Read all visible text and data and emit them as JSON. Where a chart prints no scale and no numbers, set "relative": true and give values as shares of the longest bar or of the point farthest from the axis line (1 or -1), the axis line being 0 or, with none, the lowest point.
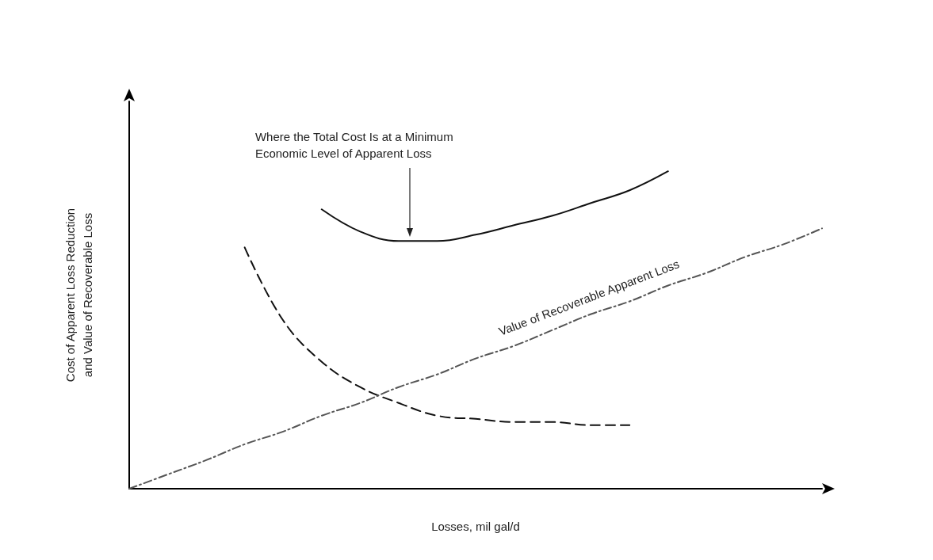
{
  "chart_data": {
    "type": "line",
    "relative": true,
    "xlabel": "Losses, mil gal/d",
    "ylabel": "Cost of Apparent Loss Reduction\nand Value of Recoverable Loss",
    "categories": [
      null,
      null,
      null,
      null,
      null,
      null,
      null,
      null,
      null,
      null,
      null,
      null,
      null,
      null,
      null,
      null,
      null,
      null,
      null
    ],
    "series": [
      {
        "color": "#111111",
        "line_style": "dashed",
        "values": [
          null,
          null,
          null,
          0.76,
          0.53,
          0.4,
          0.32,
          0.27,
          0.23,
          0.22,
          0.21,
          0.21,
          0.2,
          0.2,
          null,
          null,
          null,
          null,
          null
        ]
      },
      {
        "color": "#111111",
        "line_style": "solid",
        "values": [
          null,
          null,
          null,
          null,
          null,
          0.88,
          0.81,
          0.78,
          0.78,
          0.8,
          0.83,
          0.86,
          0.9,
          0.94,
          1,
          null,
          null,
          null,
          null
        ]
      },
      {
        "name": "Value of Recoverable Apparent Loss",
        "color": "#555555",
        "line_style": "dashdot",
        "values": [
          0,
          0.045,
          0.09,
          0.14,
          0.18,
          0.23,
          0.27,
          0.32,
          0.36,
          0.41,
          0.45,
          0.5,
          0.55,
          0.59,
          0.64,
          0.68,
          0.73,
          0.77,
          0.82
        ]
      }
    ],
    "annotations": [
      "Where the Total Cost Is at a Minimum\nEconomic Level of Apparent Loss"
    ],
    "legend": false,
    "grid": false,
    "marker": "none"
  }
}
